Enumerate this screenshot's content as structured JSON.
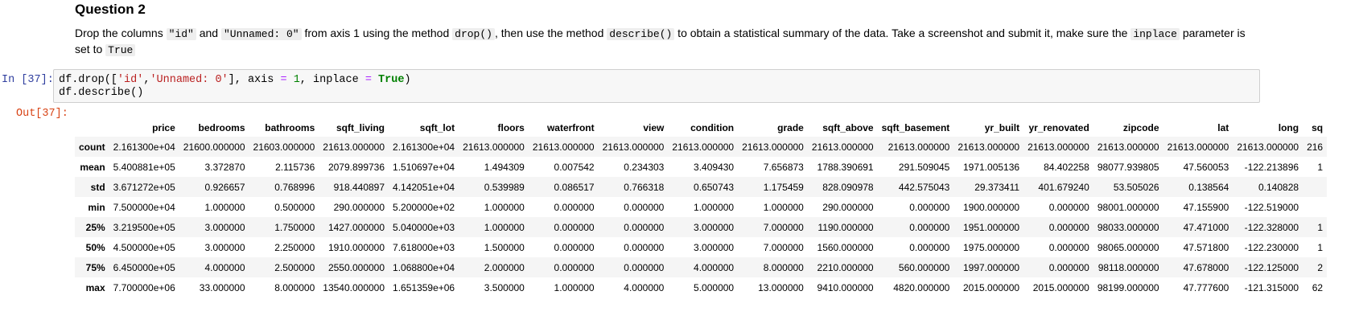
{
  "question": {
    "title": "Question 2",
    "instruction": {
      "t1": "Drop the columns ",
      "c1": "\"id\"",
      "t2": " and ",
      "c2": "\"Unnamed: 0\"",
      "t3": " from axis 1 using the method ",
      "c3": "drop()",
      "t4": ", then use the method ",
      "c4": "describe()",
      "t5": " to obtain a statistical summary of the data. Take a screenshot and submit it, make sure the ",
      "c5": "inplace",
      "t6": " parameter is set to ",
      "c6": "True"
    }
  },
  "cell": {
    "in_prompt": "In [37]:",
    "out_prompt": "Out[37]:",
    "code": {
      "p1": "df.drop([",
      "s1": "'id'",
      "p2": ",",
      "s2": "'Unnamed: 0'",
      "p3": "], axis ",
      "eq1": "=",
      "p4": " ",
      "num1": "1",
      "p5": ", inplace ",
      "eq2": "=",
      "p6": " ",
      "kw1": "True",
      "p7": ")",
      "line2": "df.describe()"
    }
  },
  "table": {
    "columns": [
      "",
      "price",
      "bedrooms",
      "bathrooms",
      "sqft_living",
      "sqft_lot",
      "floors",
      "waterfront",
      "view",
      "condition",
      "grade",
      "sqft_above",
      "sqft_basement",
      "yr_built",
      "yr_renovated",
      "zipcode",
      "lat",
      "long",
      "sq"
    ],
    "rows": [
      [
        "count",
        "2.161300e+04",
        "21600.000000",
        "21603.000000",
        "21613.000000",
        "2.161300e+04",
        "21613.000000",
        "21613.000000",
        "21613.000000",
        "21613.000000",
        "21613.000000",
        "21613.000000",
        "21613.000000",
        "21613.000000",
        "21613.000000",
        "21613.000000",
        "21613.000000",
        "21613.000000",
        "216"
      ],
      [
        "mean",
        "5.400881e+05",
        "3.372870",
        "2.115736",
        "2079.899736",
        "1.510697e+04",
        "1.494309",
        "0.007542",
        "0.234303",
        "3.409430",
        "7.656873",
        "1788.390691",
        "291.509045",
        "1971.005136",
        "84.402258",
        "98077.939805",
        "47.560053",
        "-122.213896",
        "1"
      ],
      [
        "std",
        "3.671272e+05",
        "0.926657",
        "0.768996",
        "918.440897",
        "4.142051e+04",
        "0.539989",
        "0.086517",
        "0.766318",
        "0.650743",
        "1.175459",
        "828.090978",
        "442.575043",
        "29.373411",
        "401.679240",
        "53.505026",
        "0.138564",
        "0.140828",
        ""
      ],
      [
        "min",
        "7.500000e+04",
        "1.000000",
        "0.500000",
        "290.000000",
        "5.200000e+02",
        "1.000000",
        "0.000000",
        "0.000000",
        "1.000000",
        "1.000000",
        "290.000000",
        "0.000000",
        "1900.000000",
        "0.000000",
        "98001.000000",
        "47.155900",
        "-122.519000",
        ""
      ],
      [
        "25%",
        "3.219500e+05",
        "3.000000",
        "1.750000",
        "1427.000000",
        "5.040000e+03",
        "1.000000",
        "0.000000",
        "0.000000",
        "3.000000",
        "7.000000",
        "1190.000000",
        "0.000000",
        "1951.000000",
        "0.000000",
        "98033.000000",
        "47.471000",
        "-122.328000",
        "1"
      ],
      [
        "50%",
        "4.500000e+05",
        "3.000000",
        "2.250000",
        "1910.000000",
        "7.618000e+03",
        "1.500000",
        "0.000000",
        "0.000000",
        "3.000000",
        "7.000000",
        "1560.000000",
        "0.000000",
        "1975.000000",
        "0.000000",
        "98065.000000",
        "47.571800",
        "-122.230000",
        "1"
      ],
      [
        "75%",
        "6.450000e+05",
        "4.000000",
        "2.500000",
        "2550.000000",
        "1.068800e+04",
        "2.000000",
        "0.000000",
        "0.000000",
        "4.000000",
        "8.000000",
        "2210.000000",
        "560.000000",
        "1997.000000",
        "0.000000",
        "98118.000000",
        "47.678000",
        "-122.125000",
        "2"
      ],
      [
        "max",
        "7.700000e+06",
        "33.000000",
        "8.000000",
        "13540.000000",
        "1.651359e+06",
        "3.500000",
        "1.000000",
        "4.000000",
        "5.000000",
        "13.000000",
        "9410.000000",
        "4820.000000",
        "2015.000000",
        "2015.000000",
        "98199.000000",
        "47.777600",
        "-121.315000",
        "62"
      ]
    ]
  }
}
